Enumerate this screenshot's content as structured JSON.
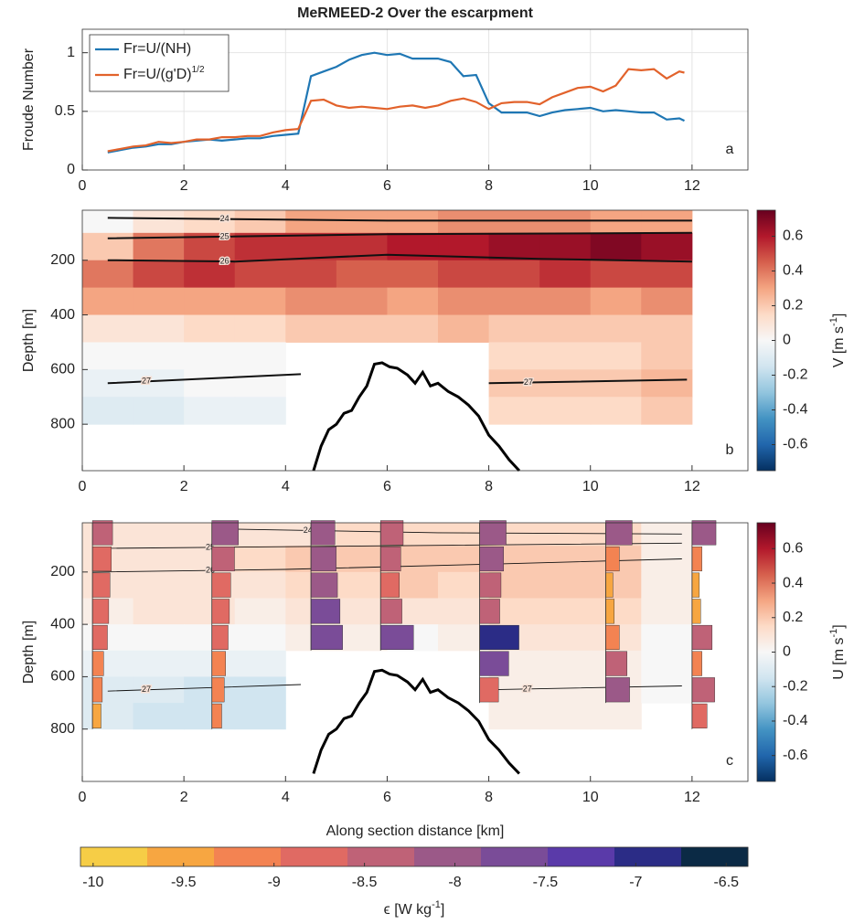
{
  "chart_data": [
    {
      "type": "line",
      "title": "MeRMEED-2 Over the escarpment",
      "ylabel": "Froude Number",
      "panel_label": "a",
      "x": [
        0.5,
        0.75,
        1.0,
        1.25,
        1.5,
        1.75,
        2.0,
        2.25,
        2.5,
        2.75,
        3.0,
        3.25,
        3.5,
        3.75,
        4.0,
        4.25,
        4.5,
        4.75,
        5.0,
        5.25,
        5.5,
        5.75,
        6.0,
        6.25,
        6.5,
        6.75,
        7.0,
        7.25,
        7.5,
        7.75,
        8.0,
        8.25,
        8.5,
        8.75,
        9.0,
        9.25,
        9.5,
        9.75,
        10.0,
        10.25,
        10.5,
        10.75,
        11.0,
        11.25,
        11.5,
        11.75,
        11.85
      ],
      "series": [
        {
          "name": "Fr=U/(NH)",
          "color": "#1f77b4",
          "values": [
            0.15,
            0.17,
            0.19,
            0.2,
            0.22,
            0.22,
            0.24,
            0.25,
            0.26,
            0.25,
            0.26,
            0.27,
            0.27,
            0.29,
            0.3,
            0.31,
            0.8,
            0.84,
            0.88,
            0.94,
            0.98,
            1.0,
            0.98,
            0.99,
            0.95,
            0.95,
            0.95,
            0.92,
            0.8,
            0.81,
            0.57,
            0.49,
            0.49,
            0.49,
            0.46,
            0.49,
            0.51,
            0.52,
            0.53,
            0.5,
            0.51,
            0.5,
            0.49,
            0.49,
            0.43,
            0.44,
            0.42
          ]
        },
        {
          "name": "Fr=U/(g'D)",
          "name_superscript": "1/2",
          "color": "#e2622b",
          "values": [
            0.16,
            0.18,
            0.2,
            0.21,
            0.24,
            0.23,
            0.24,
            0.26,
            0.26,
            0.28,
            0.28,
            0.29,
            0.29,
            0.32,
            0.34,
            0.35,
            0.59,
            0.6,
            0.55,
            0.53,
            0.54,
            0.53,
            0.52,
            0.54,
            0.55,
            0.53,
            0.55,
            0.59,
            0.61,
            0.58,
            0.52,
            0.57,
            0.58,
            0.58,
            0.56,
            0.62,
            0.66,
            0.7,
            0.71,
            0.67,
            0.72,
            0.86,
            0.85,
            0.86,
            0.78,
            0.84,
            0.83
          ]
        }
      ],
      "xlim": [
        0,
        13.1
      ],
      "xticks": [
        0,
        2,
        4,
        6,
        8,
        10,
        12
      ],
      "ylim": [
        0,
        1.2
      ],
      "yticks": [
        0,
        0.5,
        1
      ],
      "grid": true,
      "legend": "upper left"
    },
    {
      "type": "heatmap",
      "ylabel": "Depth [m]",
      "panel_label": "b",
      "x_centers": [
        0.5,
        1.5,
        2.5,
        3.5,
        4.5,
        5.5,
        6.5,
        7.5,
        8.5,
        9.5,
        10.5,
        11.5
      ],
      "depth_centers": [
        50,
        150,
        250,
        350,
        450,
        550,
        650,
        750
      ],
      "z": [
        [
          0.0,
          0.1,
          0.15,
          0.2,
          0.3,
          0.3,
          0.3,
          0.35,
          0.35,
          0.35,
          0.3,
          0.3
        ],
        [
          0.2,
          0.4,
          0.5,
          0.55,
          0.55,
          0.55,
          0.6,
          0.6,
          0.65,
          0.65,
          0.7,
          0.65
        ],
        [
          0.4,
          0.5,
          0.55,
          0.5,
          0.5,
          0.45,
          0.45,
          0.5,
          0.5,
          0.55,
          0.5,
          0.5
        ],
        [
          0.3,
          0.3,
          0.3,
          0.3,
          0.35,
          0.35,
          0.3,
          0.35,
          0.35,
          0.35,
          0.3,
          0.35
        ],
        [
          0.1,
          0.1,
          0.15,
          0.15,
          0.2,
          0.2,
          0.2,
          0.25,
          0.2,
          0.2,
          0.2,
          0.2
        ],
        [
          0.0,
          0.0,
          0.0,
          0.0,
          null,
          null,
          null,
          null,
          0.15,
          0.15,
          0.15,
          0.2
        ],
        [
          -0.05,
          -0.05,
          0.0,
          0.0,
          null,
          null,
          null,
          null,
          0.2,
          0.2,
          0.2,
          0.25
        ],
        [
          -0.1,
          -0.1,
          -0.05,
          -0.05,
          null,
          null,
          null,
          null,
          0.15,
          0.15,
          0.15,
          0.2
        ]
      ],
      "xlim": [
        0,
        13.1
      ],
      "xticks": [
        0,
        2,
        4,
        6,
        8,
        10,
        12
      ],
      "ylim": [
        970,
        17
      ],
      "yticks": [
        200,
        400,
        600,
        800
      ],
      "colorbar": {
        "label": {
          "text": "V [m s",
          "superscript": "-1",
          "suffix": "]"
        },
        "lim": [
          -0.75,
          0.75
        ],
        "ticks": [
          -0.6,
          -0.4,
          -0.2,
          0,
          0.2,
          0.4,
          0.6
        ],
        "colormap": [
          "#053061",
          "#2166ac",
          "#4393c3",
          "#92c5de",
          "#d1e5f0",
          "#f7f7f7",
          "#fddbc7",
          "#f4a582",
          "#d6604d",
          "#b2182b",
          "#67001f"
        ]
      },
      "contours": [
        {
          "label": "24",
          "x": [
            0.5,
            6,
            12
          ],
          "depth": [
            45,
            55,
            55
          ]
        },
        {
          "label": "25",
          "x": [
            0.5,
            6,
            12
          ],
          "depth": [
            120,
            105,
            100
          ]
        },
        {
          "label": "26",
          "x": [
            0.5,
            3,
            6,
            9,
            12
          ],
          "depth": [
            200,
            205,
            180,
            195,
            205
          ]
        },
        {
          "label": "27",
          "x": [
            0.5,
            4.3,
            null,
            8,
            11.9
          ],
          "depth": [
            650,
            617,
            null,
            650,
            637
          ]
        }
      ],
      "bathymetry": {
        "x": [
          4.55,
          4.7,
          4.85,
          5.0,
          5.15,
          5.3,
          5.45,
          5.6,
          5.75,
          5.9,
          6.05,
          6.2,
          6.4,
          6.55,
          6.7,
          6.85,
          7.0,
          7.2,
          7.4,
          7.6,
          7.8,
          8.0,
          8.2,
          8.4,
          8.6
        ],
        "depth": [
          970,
          880,
          820,
          800,
          760,
          750,
          700,
          660,
          580,
          575,
          590,
          595,
          620,
          650,
          610,
          660,
          650,
          680,
          700,
          730,
          770,
          840,
          880,
          930,
          970
        ]
      }
    },
    {
      "type": "heatmap",
      "ylabel": "Depth [m]",
      "xlabel": "Along section distance [km]",
      "panel_label": "c",
      "x_centers": [
        0.5,
        1.5,
        2.5,
        3.5,
        4.5,
        5.5,
        6.5,
        7.5,
        8.5,
        9.5,
        10.5,
        11.5
      ],
      "depth_centers": [
        50,
        150,
        250,
        350,
        450,
        550,
        650,
        750
      ],
      "z": [
        [
          0.1,
          0.1,
          0.1,
          0.1,
          0.1,
          0.15,
          0.15,
          0.15,
          0.15,
          0.15,
          0.15,
          0.05
        ],
        [
          0.1,
          0.1,
          0.1,
          0.15,
          0.2,
          0.2,
          0.2,
          0.2,
          0.2,
          0.2,
          0.2,
          0.05
        ],
        [
          0.1,
          0.1,
          0.1,
          0.1,
          0.15,
          0.15,
          0.2,
          0.15,
          0.2,
          0.2,
          0.2,
          0.05
        ],
        [
          0.05,
          0.1,
          0.1,
          0.05,
          0.1,
          0.1,
          0.1,
          0.1,
          0.15,
          0.15,
          0.15,
          0.05
        ],
        [
          0.0,
          0.0,
          0.0,
          0.0,
          0.05,
          0.05,
          0.0,
          0.05,
          0.1,
          0.1,
          0.1,
          0.0
        ],
        [
          -0.05,
          -0.05,
          -0.05,
          -0.05,
          null,
          null,
          null,
          null,
          0.05,
          0.05,
          0.05,
          0.0
        ],
        [
          -0.1,
          -0.1,
          -0.15,
          -0.15,
          null,
          null,
          null,
          null,
          0.05,
          0.05,
          0.05,
          0.0
        ],
        [
          -0.1,
          -0.15,
          -0.15,
          -0.15,
          null,
          null,
          null,
          null,
          0.05,
          0.05,
          0.05,
          null
        ]
      ],
      "xlim": [
        0,
        13.1
      ],
      "xticks": [
        0,
        2,
        4,
        6,
        8,
        10,
        12
      ],
      "ylim": [
        1000,
        12
      ],
      "yticks": [
        200,
        400,
        600,
        800
      ],
      "colorbar": {
        "label": {
          "text": "U [m s",
          "superscript": "-1",
          "suffix": "]"
        },
        "lim": [
          -0.75,
          0.75
        ],
        "ticks": [
          -0.6,
          -0.4,
          -0.2,
          0,
          0.2,
          0.4,
          0.6
        ],
        "colormap": [
          "#053061",
          "#2166ac",
          "#4393c3",
          "#92c5de",
          "#d1e5f0",
          "#f7f7f7",
          "#fddbc7",
          "#f4a582",
          "#d6604d",
          "#b2182b",
          "#67001f"
        ]
      },
      "contours": [
        {
          "label": "24",
          "x": [
            2.6,
            7,
            11.8
          ],
          "depth": [
            35,
            50,
            55
          ]
        },
        {
          "label": "25",
          "x": [
            0.2,
            6,
            11.8
          ],
          "depth": [
            110,
            100,
            90
          ]
        },
        {
          "label": "26",
          "x": [
            0.2,
            4,
            8,
            11.8
          ],
          "depth": [
            200,
            190,
            170,
            150
          ]
        },
        {
          "label": "27",
          "x": [
            0.5,
            4.3,
            null,
            8,
            11.8
          ],
          "depth": [
            655,
            630,
            null,
            650,
            635
          ]
        }
      ],
      "bathymetry": {
        "x": [
          4.55,
          4.7,
          4.85,
          5.0,
          5.15,
          5.3,
          5.45,
          5.6,
          5.75,
          5.9,
          6.05,
          6.2,
          6.4,
          6.55,
          6.7,
          6.85,
          7.0,
          7.2,
          7.4,
          7.6,
          7.8,
          8.0,
          8.2,
          8.4,
          8.6
        ],
        "depth": [
          970,
          880,
          820,
          800,
          760,
          750,
          700,
          660,
          580,
          575,
          590,
          595,
          620,
          650,
          610,
          660,
          650,
          680,
          700,
          730,
          770,
          840,
          880,
          930,
          970
        ]
      },
      "profiles": {
        "x": [
          0.2,
          2.55,
          4.5,
          5.87,
          7.82,
          10.3,
          12.0
        ],
        "depth_centers": [
          50,
          150,
          250,
          350,
          450,
          550,
          650,
          750
        ],
        "values": [
          [
            -8.5,
            -8.6,
            -8.7,
            -8.8,
            -8.9,
            -9.2,
            -9.3,
            -9.4
          ],
          [
            -8.0,
            -8.3,
            -8.6,
            -8.7,
            -8.8,
            -9.0,
            -9.1,
            -9.3
          ],
          [
            -8.2,
            -8.1,
            -8.0,
            -7.8,
            -7.6,
            null,
            null,
            null
          ],
          [
            -8.3,
            -8.5,
            -8.6,
            -8.4,
            -7.5,
            null,
            null,
            null
          ],
          [
            -8.0,
            -8.2,
            -8.4,
            -8.5,
            -7.0,
            -7.8,
            -8.6,
            null
          ],
          [
            -8.0,
            -9.0,
            -9.5,
            -9.4,
            -9.0,
            -8.4,
            -8.2,
            null
          ],
          [
            -8.2,
            -9.3,
            -9.5,
            -9.4,
            -8.5,
            -9.3,
            -8.3,
            -8.9
          ]
        ],
        "colorbar": {
          "label": {
            "text": "ϵ [W kg",
            "superscript": "-1",
            "suffix": "]"
          },
          "lim": [
            -10.07,
            -6.38
          ],
          "ticks": [
            -10,
            -9.5,
            -9,
            -8.5,
            -8,
            -7.5,
            -7,
            -6.5
          ],
          "colormap": [
            "#f6cd46",
            "#f7a641",
            "#f38352",
            "#e06a63",
            "#bf6277",
            "#9b5988",
            "#7a4c98",
            "#5a3aa9",
            "#2b2c86",
            "#0b2a45"
          ]
        }
      }
    }
  ]
}
